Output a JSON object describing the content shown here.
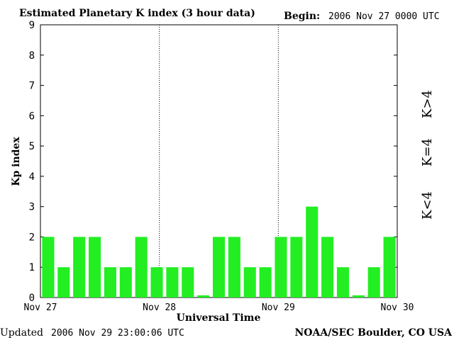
{
  "header": {
    "title": "Estimated Planetary K index (3 hour data)",
    "begin_label": "Begin:",
    "begin_value": "2006 Nov 27 0000 UTC"
  },
  "footer": {
    "updated_label": "Updated",
    "updated_value": "2006 Nov 29 23:00:06 UTC",
    "source": "NOAA/SEC Boulder, CO USA"
  },
  "legend": {
    "items": [
      {
        "label": "K<4",
        "color": "#22ee22"
      },
      {
        "label": "K=4",
        "color": "#ffcc00"
      },
      {
        "label": "K>4",
        "color": "#ff2200"
      }
    ]
  },
  "chart_data": {
    "type": "bar",
    "title": "Estimated Planetary K index (3 hour data)",
    "xlabel": "Universal Time",
    "ylabel": "Kp index",
    "ylim": [
      0,
      9
    ],
    "yticks": [
      "0",
      "1",
      "2",
      "3",
      "4",
      "5",
      "6",
      "7",
      "8",
      "9"
    ],
    "x_tick_labels": [
      "Nov 27",
      "Nov 28",
      "Nov 29",
      "Nov 30"
    ],
    "day_dividers": true,
    "values": [
      2,
      1,
      2,
      2,
      1,
      1,
      2,
      1,
      1,
      1,
      0,
      2,
      2,
      1,
      1,
      2,
      2,
      3,
      2,
      1,
      0,
      1,
      2
    ],
    "colors": {
      "below4": "#22ee22",
      "equal4": "#ffcc00",
      "above4": "#ff2200"
    }
  }
}
